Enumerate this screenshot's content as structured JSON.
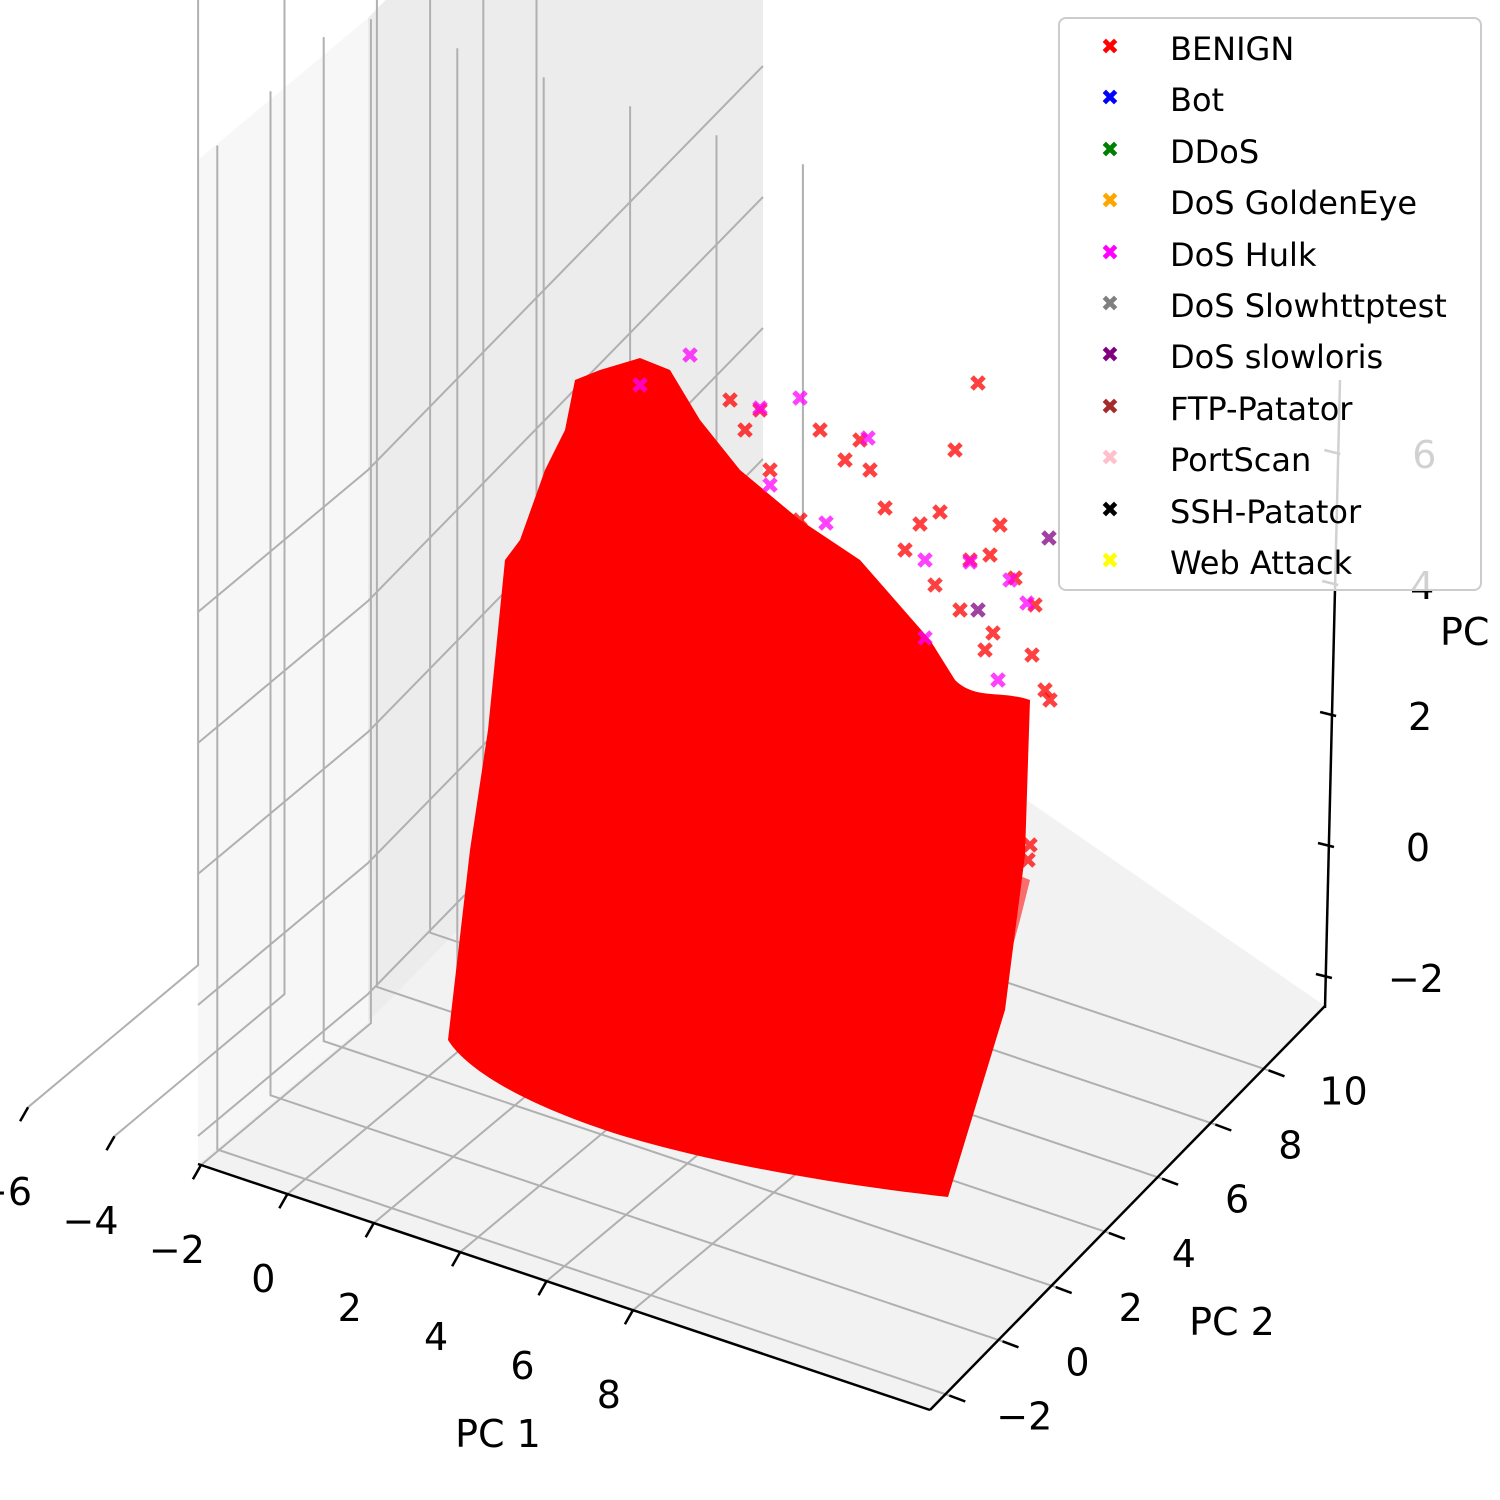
{
  "chart_data": {
    "type": "scatter",
    "projection": "3d",
    "xlabel": "PC 1",
    "ylabel": "PC 2",
    "zlabel": "PC",
    "xlim": [
      -7.5,
      8.5
    ],
    "ylim": [
      -2.5,
      11
    ],
    "zlim": [
      -2.5,
      7
    ],
    "x_ticks": [
      "−6",
      "−4",
      "−2",
      "0",
      "2",
      "4",
      "6",
      "8"
    ],
    "y_ticks": [
      "−2",
      "0",
      "2",
      "4",
      "6",
      "8",
      "10"
    ],
    "z_ticks": [
      "−2",
      "0",
      "2",
      "4",
      "6"
    ],
    "grid": true,
    "legend_position": "top-right",
    "marker": "x",
    "series": [
      {
        "name": "BENIGN",
        "color": "#ff0000"
      },
      {
        "name": "Bot",
        "color": "#0000ff"
      },
      {
        "name": "DDoS",
        "color": "#008000"
      },
      {
        "name": "DoS GoldenEye",
        "color": "#ffa500"
      },
      {
        "name": "DoS Hulk",
        "color": "#ff00ff"
      },
      {
        "name": "DoS Slowhttptest",
        "color": "#808080"
      },
      {
        "name": "DoS slowloris",
        "color": "#800080"
      },
      {
        "name": "FTP-Patator",
        "color": "#a52a2a"
      },
      {
        "name": "PortScan",
        "color": "#ffc0cb"
      },
      {
        "name": "SSH-Patator",
        "color": "#000000"
      },
      {
        "name": "Web Attack",
        "color": "#ffff00"
      }
    ]
  }
}
